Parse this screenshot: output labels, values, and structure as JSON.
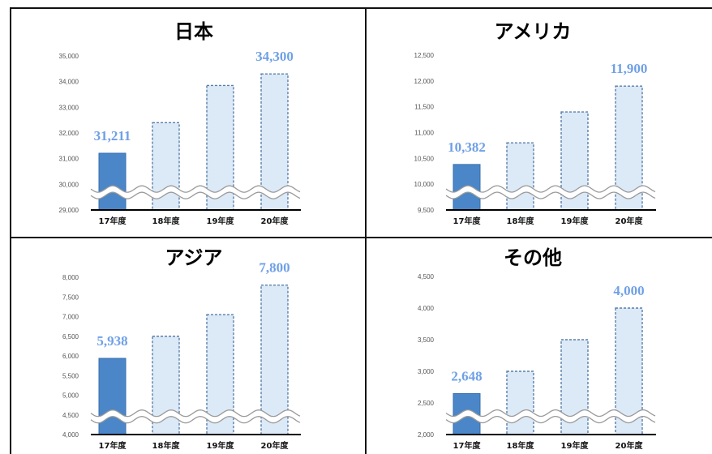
{
  "chart_data": [
    {
      "type": "bar",
      "title": "日本",
      "categories": [
        "17年度",
        "18年度",
        "19年度",
        "20年度"
      ],
      "values": [
        31211,
        32400,
        33850,
        34300
      ],
      "data_labels": [
        "31,211",
        "",
        "",
        "34,300"
      ],
      "yticks": [
        "29,000",
        "30,000",
        "31,000",
        "32,000",
        "33,000",
        "34,000",
        "35,000"
      ],
      "ylim": [
        29000,
        35000
      ],
      "axis_break": true,
      "bar_styles": [
        "actual",
        "forecast",
        "forecast",
        "forecast"
      ]
    },
    {
      "type": "bar",
      "title": "アメリカ",
      "categories": [
        "17年度",
        "18年度",
        "19年度",
        "20年度"
      ],
      "values": [
        10382,
        10800,
        11400,
        11900
      ],
      "data_labels": [
        "10,382",
        "",
        "",
        "11,900"
      ],
      "yticks": [
        "9,500",
        "10,000",
        "10,500",
        "11,000",
        "11,500",
        "12,000",
        "12,500"
      ],
      "ylim": [
        9500,
        12500
      ],
      "axis_break": true,
      "bar_styles": [
        "actual",
        "forecast",
        "forecast",
        "forecast"
      ]
    },
    {
      "type": "bar",
      "title": "アジア",
      "categories": [
        "17年度",
        "18年度",
        "19年度",
        "20年度"
      ],
      "values": [
        5938,
        6500,
        7050,
        7800
      ],
      "data_labels": [
        "5,938",
        "",
        "",
        "7,800"
      ],
      "yticks": [
        "4,000",
        "4,500",
        "5,000",
        "5,500",
        "6,000",
        "6,500",
        "7,000",
        "7,500",
        "8,000"
      ],
      "ylim": [
        4000,
        8000
      ],
      "axis_break": true,
      "bar_styles": [
        "actual",
        "forecast",
        "forecast",
        "forecast"
      ]
    },
    {
      "type": "bar",
      "title": "その他",
      "categories": [
        "17年度",
        "18年度",
        "19年度",
        "20年度"
      ],
      "values": [
        2648,
        3000,
        3500,
        4000
      ],
      "data_labels": [
        "2,648",
        "",
        "",
        "4,000"
      ],
      "yticks": [
        "2,000",
        "2,500",
        "3,000",
        "3,500",
        "4,000",
        "4,500"
      ],
      "ylim": [
        2000,
        4500
      ],
      "axis_break": true,
      "bar_styles": [
        "actual",
        "forecast",
        "forecast",
        "forecast"
      ]
    }
  ],
  "colors": {
    "actual_fill": "#4a86c8",
    "actual_stroke": "#3a6fae",
    "forecast_fill": "#dce9f7",
    "forecast_stroke": "#5a7fa8",
    "label": "#6fa0e6"
  }
}
